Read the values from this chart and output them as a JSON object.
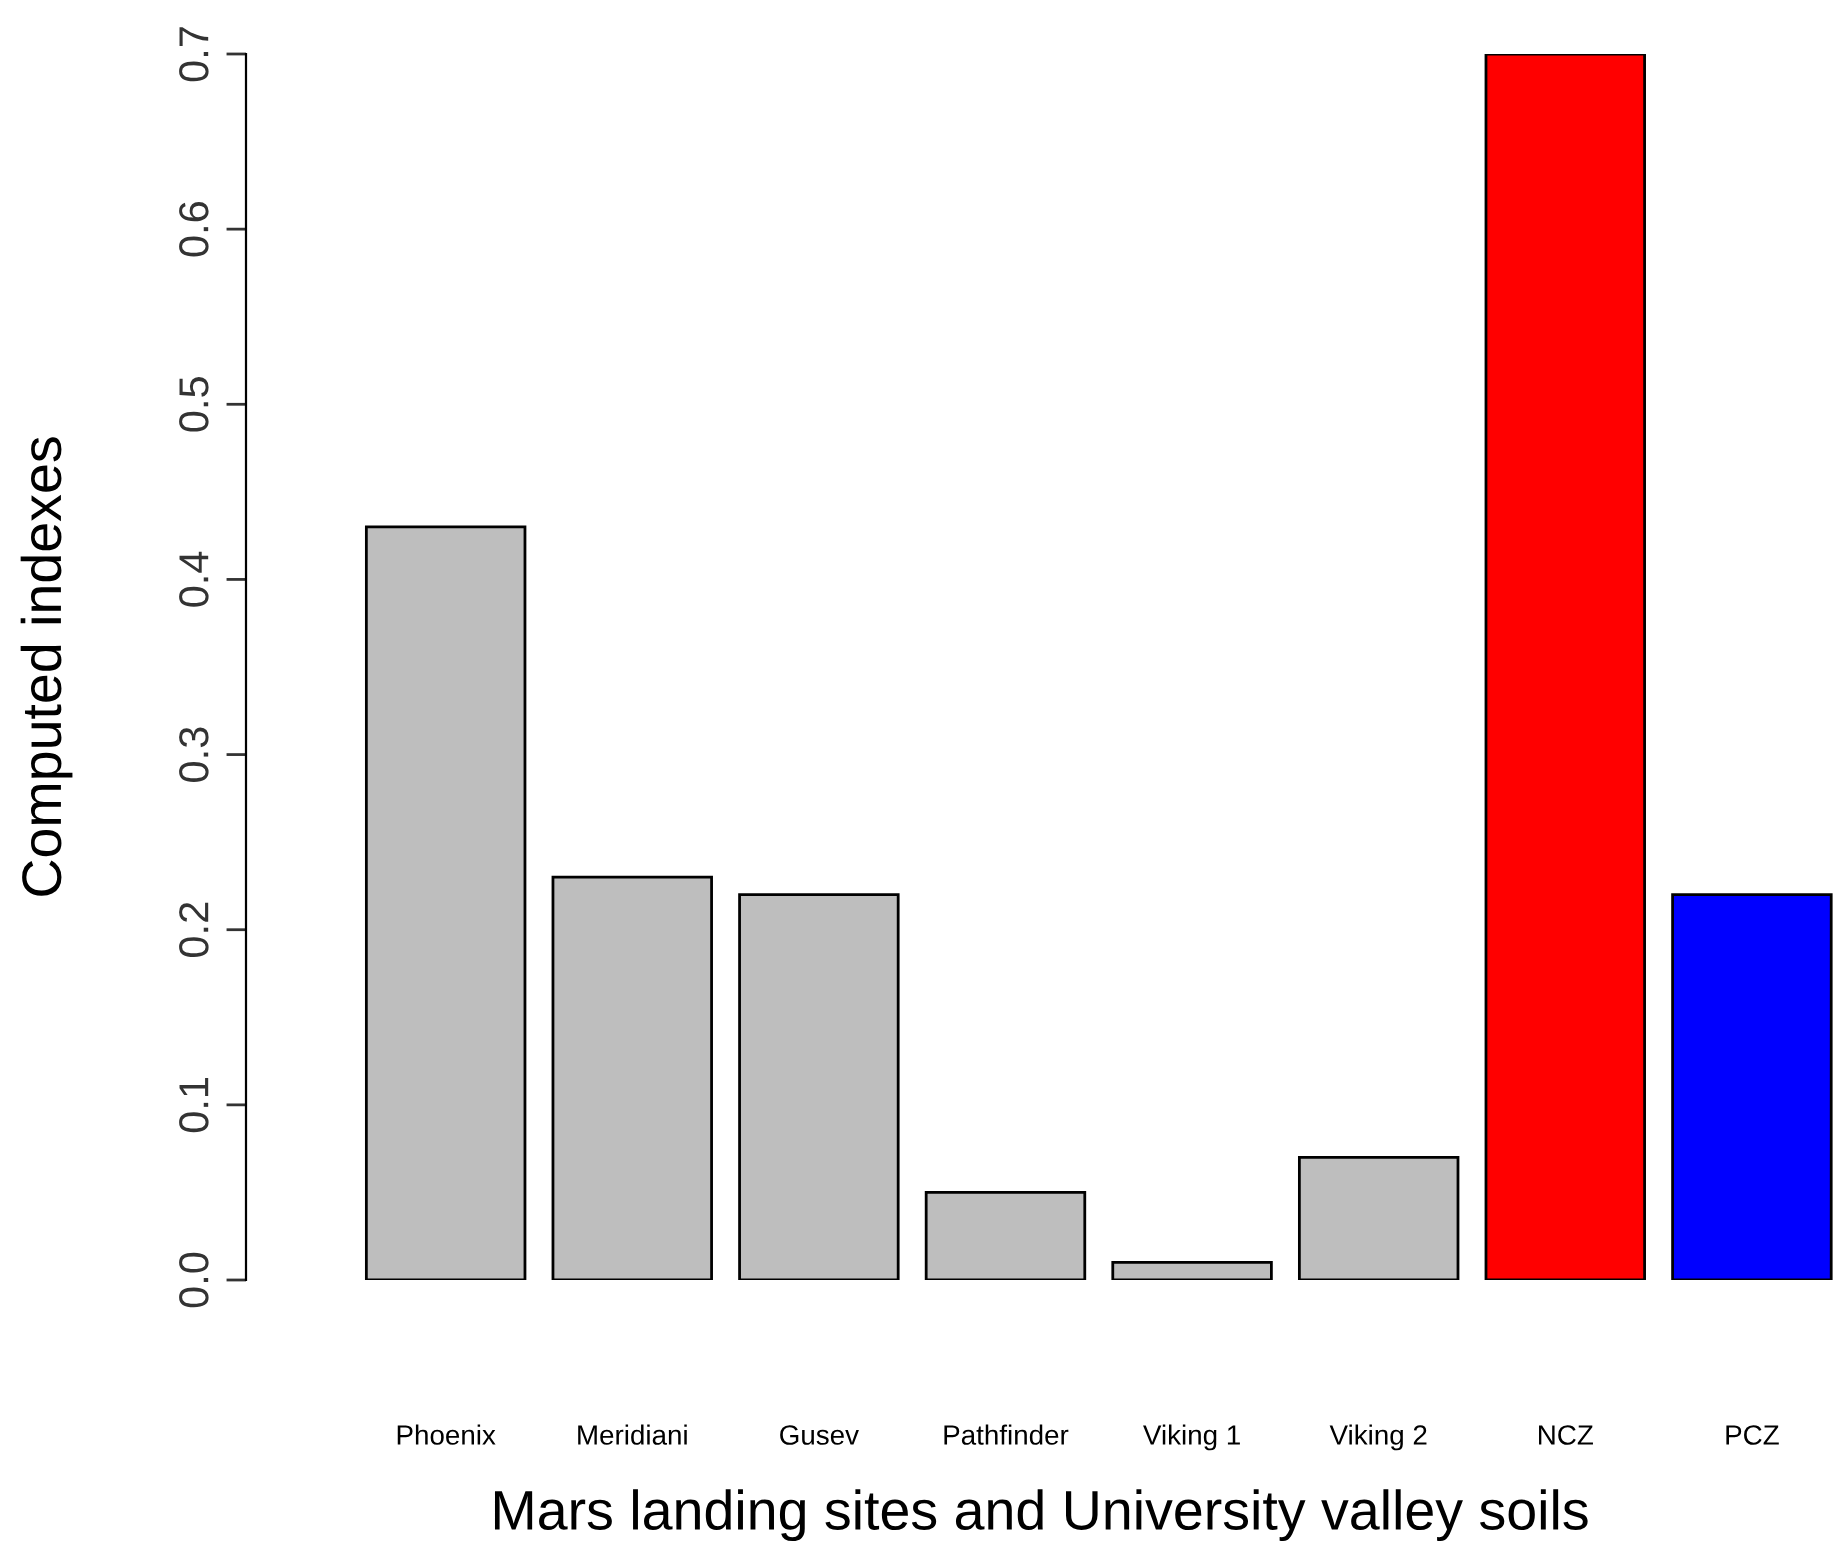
{
  "chart_data": {
    "type": "bar",
    "xlabel": "Mars landing sites and University valley soils",
    "ylabel": "Computed indexes",
    "categories": [
      "Phoenix",
      "Meridiani",
      "Gusev",
      "Pathfinder",
      "Viking 1",
      "Viking 2",
      "NCZ",
      "PCZ"
    ],
    "values": [
      0.43,
      0.23,
      0.22,
      0.05,
      0.01,
      0.07,
      0.7,
      0.22
    ],
    "colors": [
      "#bebebe",
      "#bebebe",
      "#bebebe",
      "#bebebe",
      "#bebebe",
      "#bebebe",
      "#ff0000",
      "#0000ff"
    ],
    "ylim": [
      0,
      0.7
    ],
    "yticks": [
      {
        "value": 0,
        "label": "0.0"
      },
      0.1,
      0.2,
      0.3,
      0.4,
      0.5,
      0.6,
      0.7
    ],
    "grid": false
  }
}
